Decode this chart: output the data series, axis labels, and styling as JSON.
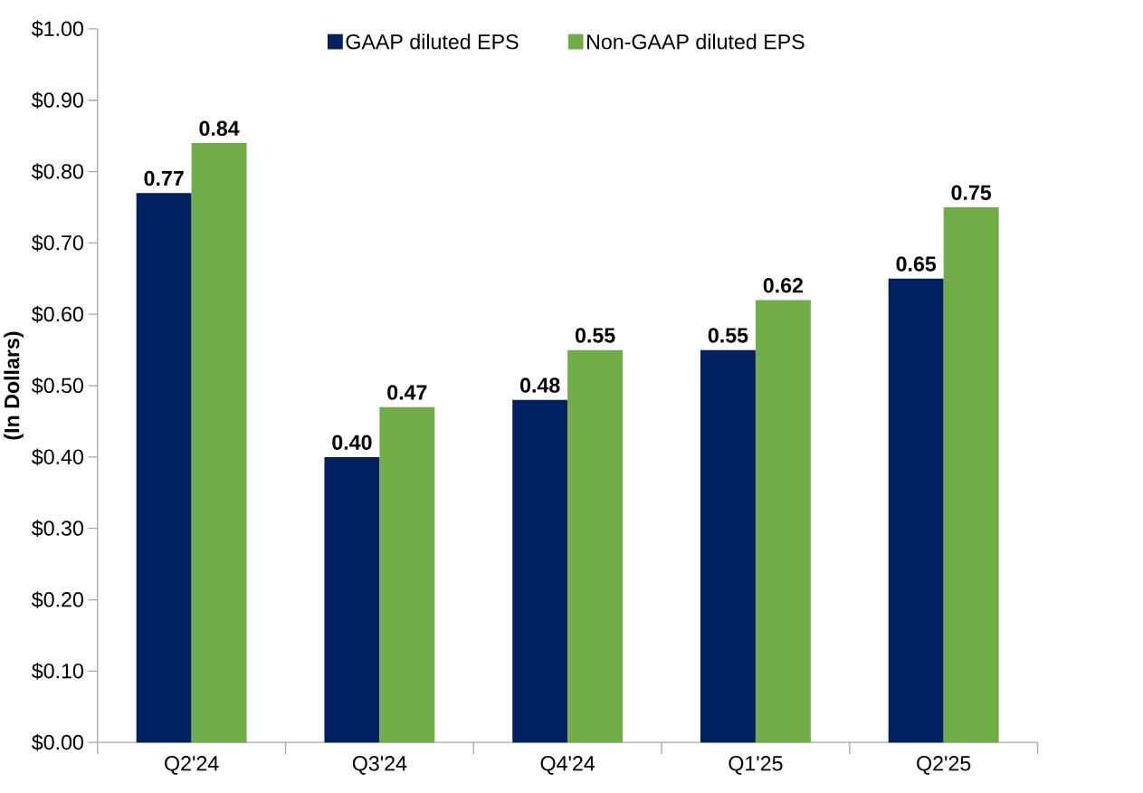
{
  "chart_data": {
    "type": "bar",
    "ylabel": "(In Dollars)",
    "categories": [
      "Q2'24",
      "Q3'24",
      "Q4'24",
      "Q1'25",
      "Q2'25"
    ],
    "series": [
      {
        "name": "GAAP diluted EPS",
        "color": "#002060",
        "values": [
          0.77,
          0.4,
          0.48,
          0.55,
          0.65
        ],
        "value_labels": [
          "0.77",
          "0.40",
          "0.48",
          "0.55",
          "0.65"
        ]
      },
      {
        "name": "Non-GAAP diluted EPS",
        "color": "#70ad47",
        "values": [
          0.84,
          0.47,
          0.55,
          0.62,
          0.75
        ],
        "value_labels": [
          "0.84",
          "0.47",
          "0.55",
          "0.62",
          "0.75"
        ]
      }
    ],
    "ylim": [
      0,
      1
    ],
    "yticks": [
      {
        "value": 0,
        "label": "$0.00"
      },
      {
        "value": 0.1,
        "label": "$0.10"
      },
      {
        "value": 0.2,
        "label": "$0.20"
      },
      {
        "value": 0.3,
        "label": "$0.30"
      },
      {
        "value": 0.4,
        "label": "$0.40"
      },
      {
        "value": 0.5,
        "label": "$0.50"
      },
      {
        "value": 0.6,
        "label": "$0.60"
      },
      {
        "value": 0.7,
        "label": "$0.70"
      },
      {
        "value": 0.8,
        "label": "$0.80"
      },
      {
        "value": 0.9,
        "label": "$0.90"
      },
      {
        "value": 1,
        "label": "$1.00"
      }
    ],
    "grid": false,
    "legend": "top"
  }
}
